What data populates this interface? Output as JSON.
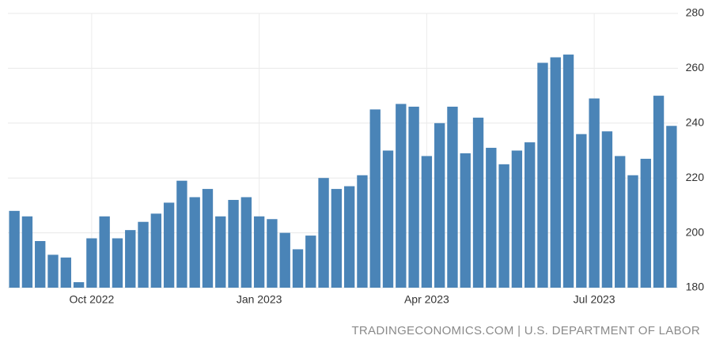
{
  "chart_data": {
    "type": "bar",
    "source": "TRADINGECONOMICS.COM | U.S. DEPARTMENT OF LABOR",
    "categories": [
      null,
      null,
      null,
      null,
      null,
      null,
      "Oct 2022",
      null,
      null,
      null,
      null,
      null,
      null,
      null,
      null,
      null,
      null,
      null,
      null,
      "Jan 2023",
      null,
      null,
      null,
      null,
      null,
      null,
      null,
      null,
      null,
      null,
      null,
      null,
      "Apr 2023",
      null,
      null,
      null,
      null,
      null,
      null,
      null,
      null,
      null,
      null,
      null,
      null,
      "Jul 2023",
      null,
      null,
      null,
      null,
      null,
      null
    ],
    "values": [
      208,
      206,
      197,
      192,
      191,
      182,
      198,
      206,
      198,
      201,
      204,
      207,
      211,
      219,
      213,
      216,
      206,
      212,
      213,
      206,
      205,
      200,
      194,
      199,
      220,
      216,
      217,
      221,
      245,
      230,
      247,
      246,
      228,
      240,
      246,
      229,
      242,
      231,
      225,
      230,
      233,
      262,
      264,
      265,
      236,
      249,
      237,
      228,
      221,
      227,
      250,
      239
    ],
    "color": "#4a84b7",
    "ylim": [
      180,
      280
    ],
    "yticks": [
      180,
      200,
      220,
      240,
      260,
      280
    ],
    "grid": true
  }
}
